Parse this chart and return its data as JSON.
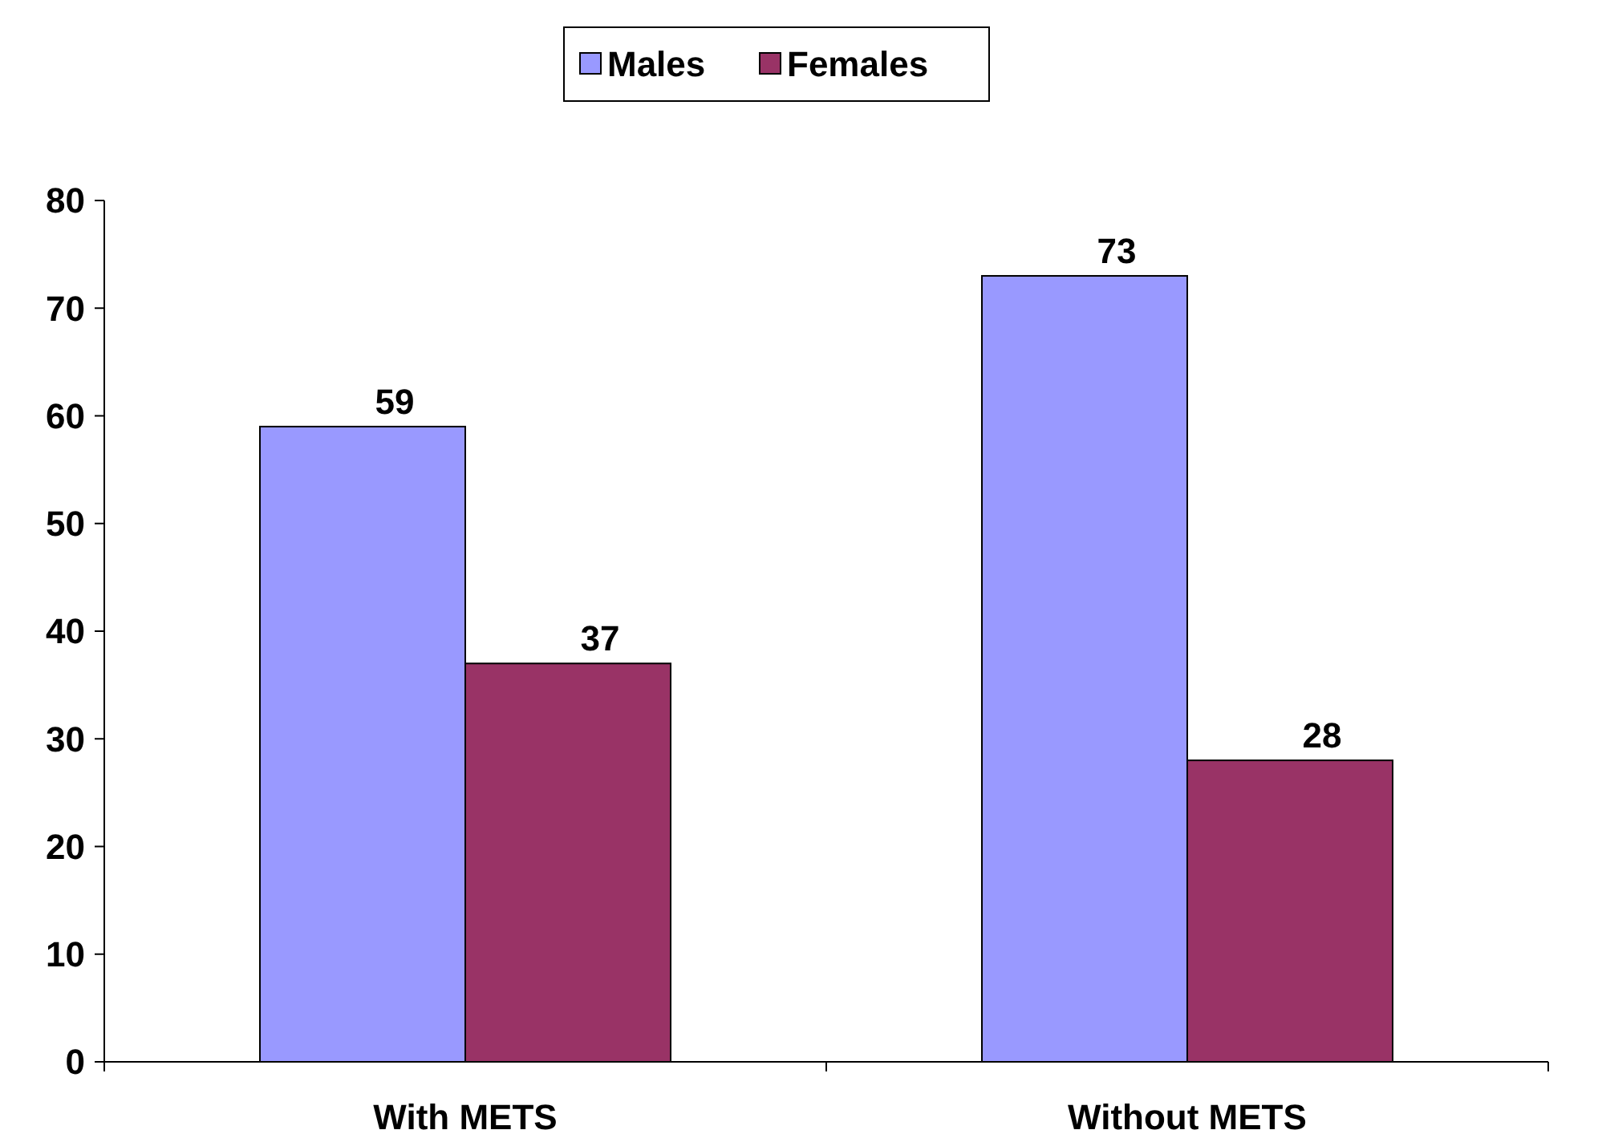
{
  "chart_data": {
    "type": "bar",
    "categories": [
      "With METS",
      "Without METS"
    ],
    "series": [
      {
        "name": "Males",
        "color": "#9999ff",
        "values": [
          59,
          73
        ]
      },
      {
        "name": "Females",
        "color": "#993366",
        "values": [
          37,
          28
        ]
      }
    ],
    "ylim": [
      0,
      80
    ],
    "yticks": [
      0,
      10,
      20,
      30,
      40,
      50,
      60,
      70,
      80
    ],
    "grid": false,
    "legend": "top",
    "data_labels": true
  }
}
